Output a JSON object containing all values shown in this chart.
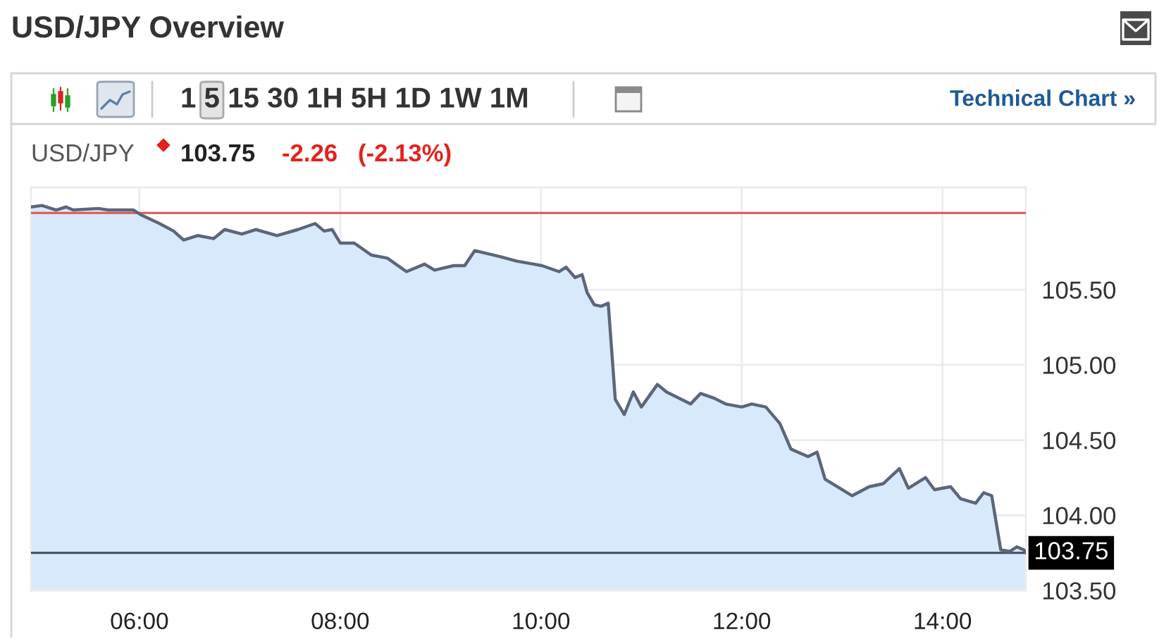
{
  "chart_data": {
    "type": "area",
    "title": "USD/JPY Overview",
    "annotations": [
      "1 5 15 30 1H 5H 1D 1W 1M",
      "Technical Chart »",
      "USD/JPY",
      "103.75",
      "-2.26",
      "(-2.13%)"
    ],
    "x": [
      4.92,
      5.03,
      5.17,
      5.27,
      5.34,
      5.59,
      5.69,
      5.94,
      6.01,
      6.2,
      6.34,
      6.44,
      6.58,
      6.74,
      6.85,
      7.02,
      7.16,
      7.37,
      7.58,
      7.75,
      7.84,
      7.92,
      8.0,
      8.14,
      8.31,
      8.47,
      8.66,
      8.84,
      8.94,
      9.13,
      9.24,
      9.34,
      9.59,
      9.76,
      10.01,
      10.18,
      10.25,
      10.34,
      10.41,
      10.46,
      10.53,
      10.6,
      10.67,
      10.74,
      10.83,
      10.92,
      11.0,
      11.16,
      11.25,
      11.49,
      11.59,
      11.72,
      11.84,
      12.0,
      12.1,
      12.24,
      12.38,
      12.49,
      12.66,
      12.75,
      12.83,
      13.1,
      13.27,
      13.41,
      13.57,
      13.66,
      13.83,
      13.92,
      14.08,
      14.18,
      14.33,
      14.41,
      14.49,
      14.58,
      14.67,
      14.74,
      14.81,
      14.83
    ],
    "values": [
      106.05,
      106.06,
      106.03,
      106.05,
      106.03,
      106.04,
      106.03,
      106.03,
      106.0,
      105.94,
      105.89,
      105.83,
      105.86,
      105.84,
      105.9,
      105.87,
      105.9,
      105.86,
      105.9,
      105.94,
      105.89,
      105.9,
      105.81,
      105.81,
      105.73,
      105.71,
      105.62,
      105.67,
      105.63,
      105.66,
      105.66,
      105.76,
      105.72,
      105.69,
      105.66,
      105.62,
      105.65,
      105.58,
      105.6,
      105.48,
      105.4,
      105.39,
      105.41,
      104.77,
      104.67,
      104.82,
      104.72,
      104.87,
      104.82,
      104.74,
      104.81,
      104.78,
      104.74,
      104.72,
      104.74,
      104.72,
      104.61,
      104.44,
      104.39,
      104.42,
      104.24,
      104.13,
      104.19,
      104.21,
      104.31,
      104.18,
      104.25,
      104.17,
      104.19,
      104.11,
      104.08,
      104.15,
      104.13,
      103.77,
      103.76,
      103.79,
      103.77,
      103.75
    ],
    "color": "#d8e9fb",
    "xlim": [
      4.92,
      14.83
    ],
    "ylim": [
      103.5,
      106.18
    ],
    "xticks": [
      {
        "value": 6,
        "label": "06:00"
      },
      {
        "value": 8,
        "label": "08:00"
      },
      {
        "value": 10,
        "label": "10:00"
      },
      {
        "value": 12,
        "label": "12:00"
      },
      {
        "value": 14,
        "label": "14:00"
      }
    ],
    "yticks": [
      {
        "value": 103.5,
        "label": "103.50"
      },
      {
        "value": 104,
        "label": "104.00"
      },
      {
        "value": 104.5,
        "label": "104.50"
      },
      {
        "value": 105,
        "label": "105.00"
      },
      {
        "value": 105.5,
        "label": "105.50"
      }
    ],
    "ref_lines": [
      {
        "axis": "y",
        "value": 106.01,
        "color": "#e05555"
      },
      {
        "axis": "y",
        "value": 103.75,
        "label": "103.75",
        "color": "#4a5666"
      }
    ],
    "grid": true
  }
}
